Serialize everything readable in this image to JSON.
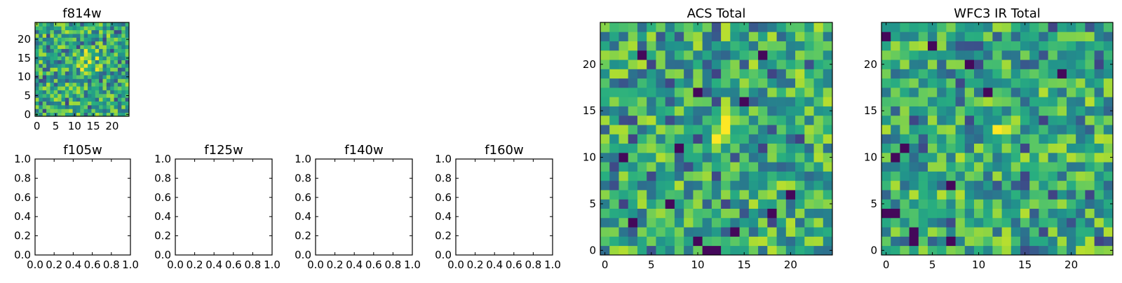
{
  "chart_data": [
    {
      "id": "f814w",
      "type": "heatmap",
      "title": "f814w",
      "cmap": "viridis",
      "xlim": [
        -0.5,
        24.5
      ],
      "ylim": [
        -0.5,
        24.5
      ],
      "xticks": [
        0,
        5,
        10,
        15,
        20
      ],
      "yticks": [
        0,
        5,
        10,
        15,
        20
      ],
      "xtick_labels": [
        "0",
        "5",
        "10",
        "15",
        "20"
      ],
      "ytick_labels": [
        "0",
        "5",
        "10",
        "15",
        "20"
      ],
      "xlabel": "",
      "ylabel": "",
      "grid_size": [
        25,
        25
      ],
      "seed": 814,
      "hotspot": {
        "x": 14,
        "y": 14,
        "radius": 4
      },
      "note": "25x25 normalized pixel intensities (0-1); cell values approximated from the colormap"
    },
    {
      "id": "f105w",
      "type": "empty",
      "title": "f105w",
      "xlim": [
        0.0,
        1.0
      ],
      "ylim": [
        0.0,
        1.0
      ],
      "xticks": [
        0.0,
        0.2,
        0.4,
        0.6,
        0.8,
        1.0
      ],
      "yticks": [
        0.0,
        0.2,
        0.4,
        0.6,
        0.8,
        1.0
      ],
      "xtick_labels": [
        "0.0",
        "0.2",
        "0.4",
        "0.6",
        "0.8",
        "1.0"
      ],
      "ytick_labels": [
        "0.0",
        "0.2",
        "0.4",
        "0.6",
        "0.8",
        "1.0"
      ],
      "xlabel": "",
      "ylabel": ""
    },
    {
      "id": "f125w",
      "type": "empty",
      "title": "f125w",
      "xlim": [
        0.0,
        1.0
      ],
      "ylim": [
        0.0,
        1.0
      ],
      "xticks": [
        0.0,
        0.2,
        0.4,
        0.6,
        0.8,
        1.0
      ],
      "yticks": [
        0.0,
        0.2,
        0.4,
        0.6,
        0.8,
        1.0
      ],
      "xtick_labels": [
        "0.0",
        "0.2",
        "0.4",
        "0.6",
        "0.8",
        "1.0"
      ],
      "ytick_labels": [
        "0.0",
        "0.2",
        "0.4",
        "0.6",
        "0.8",
        "1.0"
      ],
      "xlabel": "",
      "ylabel": ""
    },
    {
      "id": "f140w",
      "type": "empty",
      "title": "f140w",
      "xlim": [
        0.0,
        1.0
      ],
      "ylim": [
        0.0,
        1.0
      ],
      "xticks": [
        0.0,
        0.2,
        0.4,
        0.6,
        0.8,
        1.0
      ],
      "yticks": [
        0.0,
        0.2,
        0.4,
        0.6,
        0.8,
        1.0
      ],
      "xtick_labels": [
        "0.0",
        "0.2",
        "0.4",
        "0.6",
        "0.8",
        "1.0"
      ],
      "ytick_labels": [
        "0.0",
        "0.2",
        "0.4",
        "0.6",
        "0.8",
        "1.0"
      ],
      "xlabel": "",
      "ylabel": ""
    },
    {
      "id": "f160w",
      "type": "empty",
      "title": "f160w",
      "xlim": [
        0.0,
        1.0
      ],
      "ylim": [
        0.0,
        1.0
      ],
      "xticks": [
        0.0,
        0.2,
        0.4,
        0.6,
        0.8,
        1.0
      ],
      "yticks": [
        0.0,
        0.2,
        0.4,
        0.6,
        0.8,
        1.0
      ],
      "xtick_labels": [
        "0.0",
        "0.2",
        "0.4",
        "0.6",
        "0.8",
        "1.0"
      ],
      "ytick_labels": [
        "0.0",
        "0.2",
        "0.4",
        "0.6",
        "0.8",
        "1.0"
      ],
      "xlabel": "",
      "ylabel": ""
    },
    {
      "id": "acs_total",
      "type": "heatmap",
      "title": "ACS Total",
      "cmap": "viridis",
      "xlim": [
        -0.5,
        24.5
      ],
      "ylim": [
        -0.5,
        24.5
      ],
      "xticks": [
        0,
        5,
        10,
        15,
        20
      ],
      "yticks": [
        0,
        5,
        10,
        15,
        20
      ],
      "xtick_labels": [
        "0",
        "5",
        "10",
        "15",
        "20"
      ],
      "ytick_labels": [
        "0",
        "5",
        "10",
        "15",
        "20"
      ],
      "xlabel": "",
      "ylabel": "",
      "grid_size": [
        25,
        25
      ],
      "seed": 2001,
      "hotspot": {
        "x": 13,
        "y": 13,
        "radius": 3
      },
      "dark_cells": [
        [
          4,
          21
        ],
        [
          17,
          21
        ],
        [
          10,
          17
        ],
        [
          15,
          16
        ],
        [
          8,
          11
        ],
        [
          7,
          5
        ],
        [
          20,
          6
        ],
        [
          3,
          3
        ],
        [
          11,
          0
        ],
        [
          12,
          0
        ],
        [
          14,
          2
        ],
        [
          10,
          1
        ],
        [
          18,
          4
        ],
        [
          2,
          10
        ]
      ],
      "note": "25x25 normalized pixel intensities (0-1); cell values approximated from the colormap"
    },
    {
      "id": "wfc3_ir_total",
      "type": "heatmap",
      "title": "WFC3 IR Total",
      "cmap": "viridis",
      "xlim": [
        -0.5,
        24.5
      ],
      "ylim": [
        -0.5,
        24.5
      ],
      "xticks": [
        0,
        5,
        10,
        15,
        20
      ],
      "yticks": [
        0,
        5,
        10,
        15,
        20
      ],
      "xtick_labels": [
        "0",
        "5",
        "10",
        "15",
        "20"
      ],
      "ytick_labels": [
        "0",
        "5",
        "10",
        "15",
        "20"
      ],
      "xlabel": "",
      "ylabel": "",
      "grid_size": [
        25,
        25
      ],
      "seed": 3030,
      "hotspot": {
        "x": 13,
        "y": 14,
        "radius": 2
      },
      "dark_cells": [
        [
          0,
          23
        ],
        [
          5,
          22
        ],
        [
          9,
          20
        ],
        [
          19,
          19
        ],
        [
          1,
          10
        ],
        [
          2,
          11
        ],
        [
          7,
          7
        ],
        [
          0,
          4
        ],
        [
          1,
          4
        ],
        [
          3,
          2
        ],
        [
          7,
          1
        ],
        [
          3,
          1
        ],
        [
          11,
          17
        ]
      ],
      "note": "25x25 normalized pixel intensities (0-1); cell values approximated from the colormap"
    }
  ]
}
